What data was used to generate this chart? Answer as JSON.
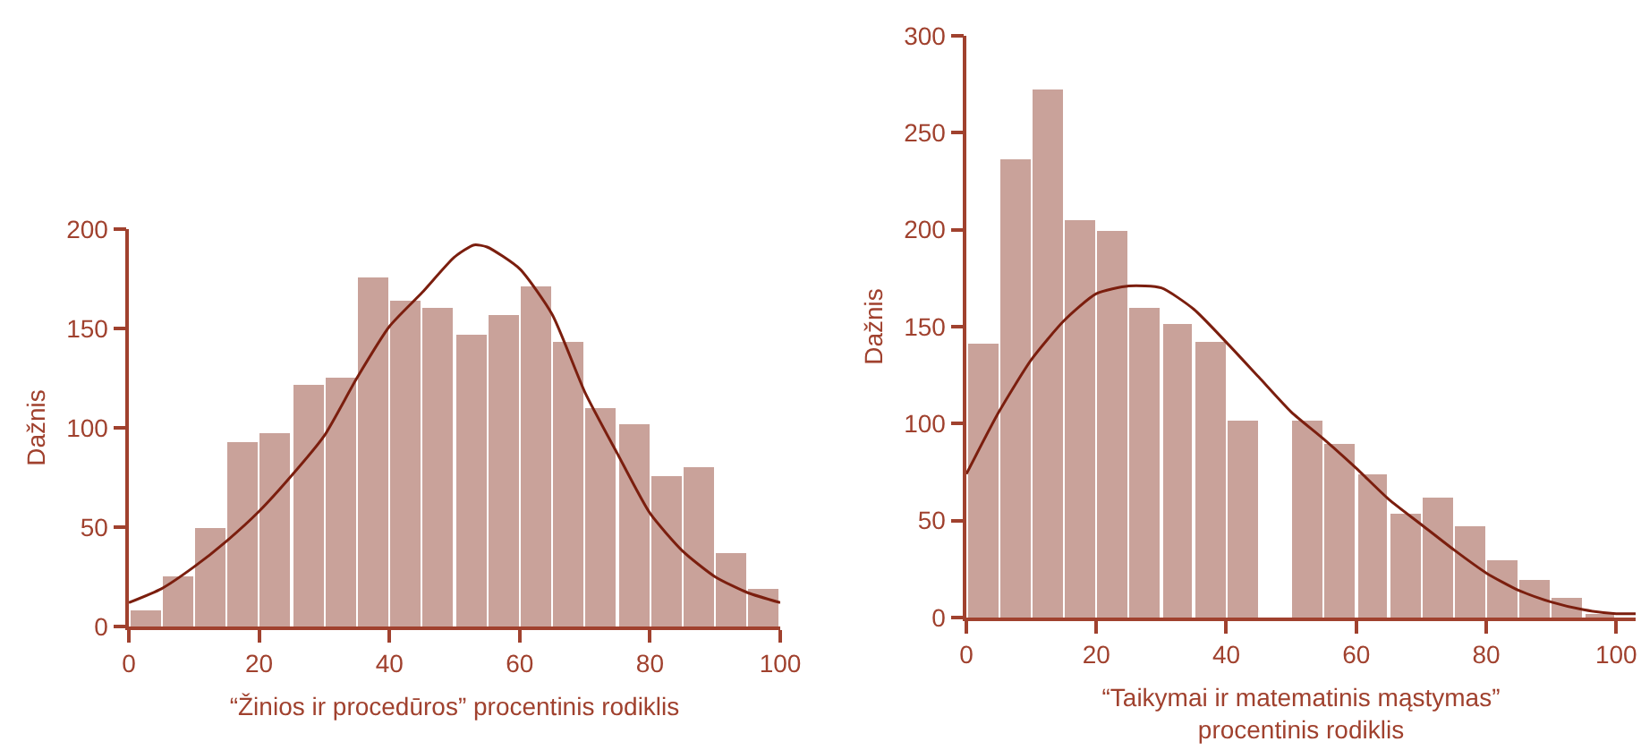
{
  "chart_data": [
    {
      "type": "histogram",
      "xlabel": "“Žinios ir procedūros” procentinis rodiklis",
      "ylabel": "Dažnis",
      "color": "#c9a29a",
      "bins": [
        0,
        5,
        10,
        15,
        20,
        25,
        30,
        35,
        40,
        45,
        50,
        55,
        60,
        65,
        70,
        75,
        80,
        85,
        90,
        95,
        100
      ],
      "values": [
        8,
        25,
        50,
        93,
        97,
        122,
        125,
        176,
        164,
        160,
        147,
        157,
        171,
        143,
        110,
        102,
        76,
        80,
        37,
        19
      ],
      "xlim": [
        0,
        100
      ],
      "xticks": [
        0,
        20,
        40,
        60,
        80,
        100
      ],
      "ylim": [
        0,
        200
      ],
      "yticks": [
        0,
        50,
        100,
        150,
        200
      ],
      "series": [
        {
          "type": "line",
          "color": "#7b1e0e",
          "x": [
            0,
            5,
            10,
            15,
            20,
            25,
            30,
            35,
            40,
            45,
            50,
            53,
            55,
            60,
            65,
            70,
            75,
            80,
            85,
            90,
            95,
            100
          ],
          "values": [
            12,
            19,
            30,
            43,
            58,
            76,
            96,
            125,
            151,
            168,
            186,
            192,
            191,
            180,
            157,
            118,
            87,
            57,
            38,
            25,
            17,
            12
          ]
        }
      ]
    },
    {
      "type": "histogram",
      "xlabel": "“Taikymai ir matematinis mąstymas” procentinis rodiklis",
      "ylabel": "Dažnis",
      "color": "#c9a29a",
      "bins": [
        0,
        5,
        10,
        15,
        20,
        25,
        30,
        35,
        40,
        45,
        50,
        55,
        60,
        65,
        70,
        75,
        80,
        85,
        90,
        95,
        100
      ],
      "values": [
        141,
        236,
        272,
        205,
        199,
        160,
        151,
        142,
        102,
        0,
        102,
        90,
        74,
        54,
        62,
        47,
        30,
        19,
        10,
        2
      ],
      "xlim": [
        0,
        103
      ],
      "xticks": [
        0,
        20,
        40,
        60,
        80,
        100
      ],
      "ylim": [
        0,
        300
      ],
      "yticks": [
        0,
        50,
        100,
        150,
        200,
        250,
        300
      ],
      "series": [
        {
          "type": "line",
          "color": "#7b1e0e",
          "x": [
            0,
            5,
            10,
            15,
            20,
            25,
            30,
            35,
            40,
            45,
            50,
            55,
            60,
            65,
            70,
            75,
            80,
            85,
            90,
            95,
            100,
            103
          ],
          "values": [
            74,
            106,
            133,
            153,
            167,
            171,
            170,
            159,
            142,
            124,
            106,
            92,
            77,
            61,
            48,
            35,
            23,
            14,
            8,
            4,
            2,
            2
          ]
        }
      ]
    }
  ]
}
